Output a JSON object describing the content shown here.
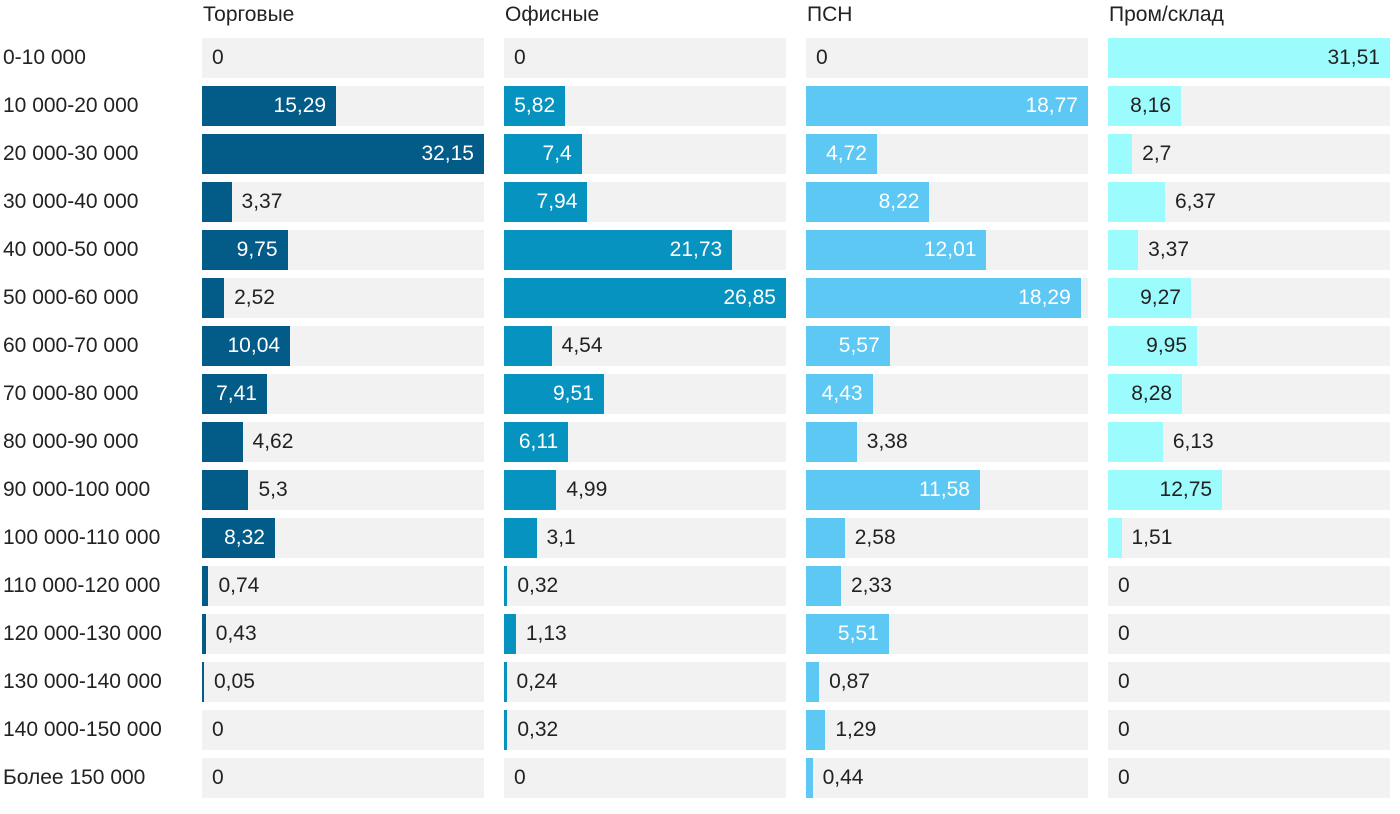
{
  "chart_data": {
    "type": "bar",
    "orientation": "horizontal",
    "layout": "small-multiples",
    "categories": [
      "0-10 000",
      "10 000-20 000",
      "20 000-30 000",
      "30 000-40 000",
      "40 000-50 000",
      "50 000-60 000",
      "60 000-70 000",
      "70 000-80 000",
      "80 000-90 000",
      "90 000-100 000",
      "100 000-110 000",
      "110 000-120 000",
      "120 000-130 000",
      "130 000-140 000",
      "140 000-150 000",
      "Более 150 000"
    ],
    "series": [
      {
        "name": "Торговые",
        "color": "#035b87",
        "values": [
          0,
          15.29,
          32.15,
          3.37,
          9.75,
          2.52,
          10.04,
          7.41,
          4.62,
          5.3,
          8.32,
          0.74,
          0.43,
          0.05,
          0,
          0
        ],
        "labels": [
          "0",
          "15,29",
          "32,15",
          "3,37",
          "9,75",
          "2,52",
          "10,04",
          "7,41",
          "4,62",
          "5,3",
          "8,32",
          "0,74",
          "0,43",
          "0,05",
          "0",
          "0"
        ],
        "max": 32.15
      },
      {
        "name": "Офисные",
        "color": "#0793c0",
        "values": [
          0,
          5.82,
          7.4,
          7.94,
          21.73,
          26.85,
          4.54,
          9.51,
          6.11,
          4.99,
          3.1,
          0.32,
          1.13,
          0.24,
          0.32,
          0
        ],
        "labels": [
          "0",
          "5,82",
          "7,4",
          "7,94",
          "21,73",
          "26,85",
          "4,54",
          "9,51",
          "6,11",
          "4,99",
          "3,1",
          "0,32",
          "1,13",
          "0,24",
          "0,32",
          "0"
        ],
        "max": 26.85
      },
      {
        "name": "ПСН",
        "color": "#5cc8f3",
        "values": [
          0,
          18.77,
          4.72,
          8.22,
          12.01,
          18.29,
          5.57,
          4.43,
          3.38,
          11.58,
          2.58,
          2.33,
          5.51,
          0.87,
          1.29,
          0.44
        ],
        "labels": [
          "0",
          "18,77",
          "4,72",
          "8,22",
          "12,01",
          "18,29",
          "5,57",
          "4,43",
          "3,38",
          "11,58",
          "2,58",
          "2,33",
          "5,51",
          "0,87",
          "1,29",
          "0,44"
        ],
        "max": 18.77
      },
      {
        "name": "Пром/склад",
        "color": "#9cfcfd",
        "values": [
          31.51,
          8.16,
          2.7,
          6.37,
          3.37,
          9.27,
          9.95,
          8.28,
          6.13,
          12.75,
          1.51,
          0,
          0,
          0,
          0,
          0
        ],
        "labels": [
          "31,51",
          "8,16",
          "2,7",
          "6,37",
          "3,37",
          "9,27",
          "9,95",
          "8,28",
          "6,13",
          "12,75",
          "1,51",
          "0",
          "0",
          "0",
          "0",
          "0"
        ],
        "max": 31.51
      }
    ],
    "title": "",
    "xlabel": "",
    "ylabel": ""
  }
}
